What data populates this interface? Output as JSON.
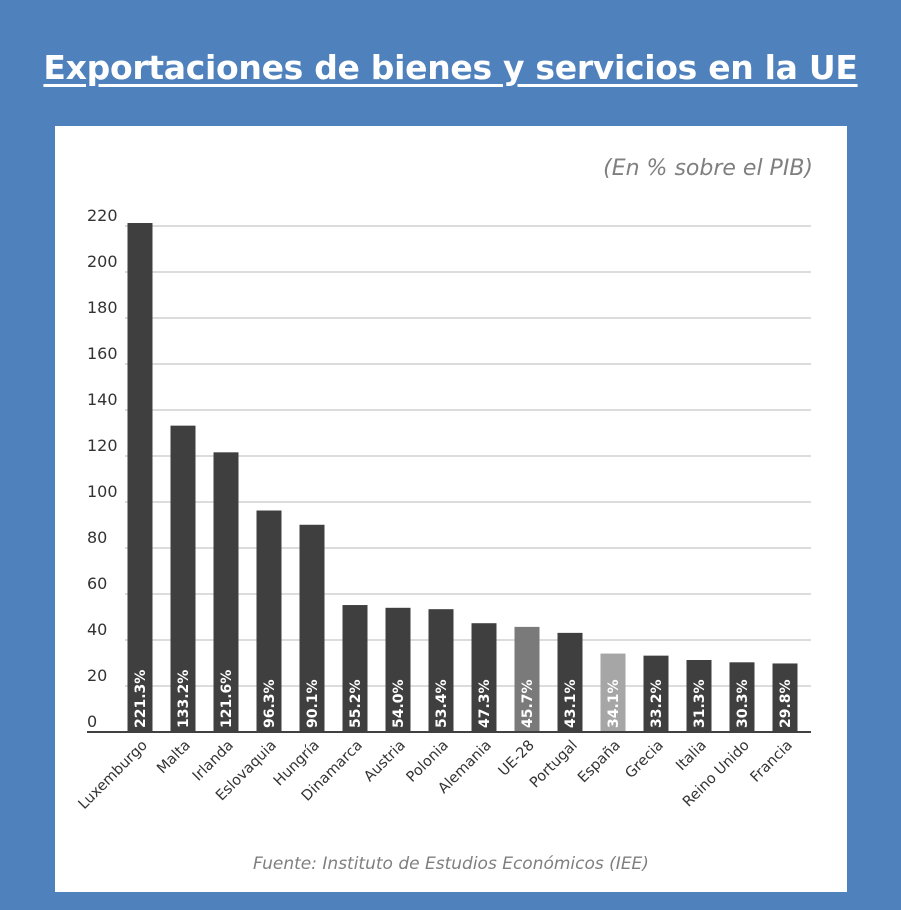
{
  "title": "Exportaciones de bienes y servicios en la UE",
  "unit_note": "(En % sobre el PIB)",
  "source": "Fuente: Instituto de Estudios Económicos (IEE)",
  "colors": {
    "background": "#4f81bd",
    "bar": "#3f3f3f",
    "bar_ue28": "#7a7a7a",
    "bar_espana": "#a6a6a6",
    "gridline": "#c8c8c8",
    "axis": "#404040"
  },
  "chart_data": {
    "type": "bar",
    "title": "Exportaciones de bienes y servicios en la UE",
    "ylabel": "(En % sobre el PIB)",
    "xlabel": "",
    "ylim": [
      0,
      220
    ],
    "yticks": [
      0,
      20,
      40,
      60,
      80,
      100,
      120,
      140,
      160,
      180,
      200,
      220
    ],
    "grid": true,
    "categories": [
      "Luxemburgo",
      "Malta",
      "Irlanda",
      "Eslovaquia",
      "Hungría",
      "Dinamarca",
      "Austria",
      "Polonia",
      "Alemania",
      "UE-28",
      "Portugal",
      "España",
      "Grecia",
      "Italia",
      "Reino Unido",
      "Francia"
    ],
    "values": [
      221.3,
      133.2,
      121.6,
      96.3,
      90.1,
      55.2,
      54.0,
      53.4,
      47.3,
      45.7,
      43.1,
      34.1,
      33.2,
      31.3,
      30.3,
      29.8
    ],
    "value_labels": [
      "221.3%",
      "133.2%",
      "121.6%",
      "96.3%",
      "90.1%",
      "55.2%",
      "54.0%",
      "53.4%",
      "47.3%",
      "45.7%",
      "43.1%",
      "34.1%",
      "33.2%",
      "31.3%",
      "30.3%",
      "29.8%"
    ],
    "highlight": {
      "UE-28": "bar_ue28",
      "España": "bar_espana"
    }
  }
}
